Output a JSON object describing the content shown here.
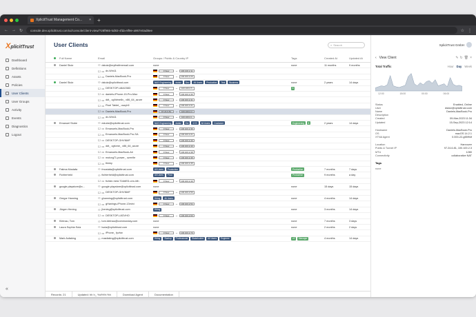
{
  "browser": {
    "tab_title": "XplicitTrust Management Co...",
    "url": "console.dev.xplicittrust.com/ui/console/client-view/?28f965-5d83-4fda-8f9e-a967e0ad8ee"
  },
  "sidebar": {
    "logo_x": "X",
    "logo_rest": "plicitTrust",
    "items": [
      {
        "label": "Dashboard"
      },
      {
        "label": "Definitions"
      },
      {
        "label": "Assets"
      },
      {
        "label": "Policies"
      },
      {
        "label": "User Clients"
      },
      {
        "label": "User Groups"
      },
      {
        "label": "Activity"
      },
      {
        "label": "Events"
      },
      {
        "label": "Diagnostics"
      },
      {
        "label": "Logout"
      }
    ],
    "collapse": "«"
  },
  "main": {
    "title": "User Clients",
    "search_placeholder": "Search",
    "columns": [
      "Full Name",
      "Email",
      "Groups / Public & Country IP",
      "Tags",
      "Created At",
      "Updated At"
    ],
    "rows": [
      {
        "type": "user",
        "status": "",
        "name": "Daniel Stolz",
        "email": "dstolz@myfirstfreemail.com",
        "groups": [],
        "groups_text": "none",
        "tags": "none",
        "created": "11 months",
        "updated": "9 months"
      },
      {
        "type": "device",
        "name": "dv-Win11",
        "ip1": "0 New",
        "ip2": "100.100.2.11"
      },
      {
        "type": "device",
        "name": "Daniels-MacBook-Pro",
        "ip1": "0 New",
        "ip2": "100.100.2.20"
      },
      {
        "type": "user",
        "status": "g",
        "name": "Daniel Stolz",
        "email": "dstolz@xplicittrust.com",
        "groups": [
          "NAS Engineering",
          "dstolz",
          "Dev",
          "All Users",
          "Production",
          "Test",
          "Business"
        ],
        "groups_text": "",
        "tags": "none",
        "created": "2 years",
        "updated": "14 days"
      },
      {
        "type": "device",
        "name": "DESKTOP-U8AO383",
        "ip1": "0 New",
        "ip2": "100.100.2.5",
        "tag": "A"
      },
      {
        "type": "device",
        "name": "daniels-iPhone-15-Pro-Max",
        "ip1": "0 New",
        "ip2": "100.100.2.35"
      },
      {
        "type": "device",
        "name": "ddt_ cg9dme8v_ x86_64_azure",
        "ip1": "0 New",
        "ip2": "100.100.2.41"
      },
      {
        "type": "device",
        "name": "Pixel Tablet_ oszyh9",
        "ip1": "0 New",
        "ip2": "100.100.2.21"
      },
      {
        "type": "device",
        "name": "Daniels-MacBook-Pro",
        "ip1": "97.24.6.81",
        "ip2": "100.100.2.3",
        "sel": true
      },
      {
        "type": "device",
        "name": "dv-Win11",
        "ip1": "0 New",
        "ip2": "100.100.2.1"
      },
      {
        "type": "user",
        "status": "",
        "name": "Emanuel Stube",
        "email": "estube@xplicittrust.com",
        "groups": [
          "NAS Engineering",
          "dstolz",
          "Ext",
          "X+S",
          "All Users",
          "Customer"
        ],
        "groups_text": "",
        "tags": "Engineering",
        "tags2": "8",
        "created": "2 years",
        "updated": "14 days"
      },
      {
        "type": "device",
        "name": "Emanuels-MacBook-Pro",
        "ip1": "0 New",
        "ip2": "100.100.2.36"
      },
      {
        "type": "device",
        "name": "Emanuels-MacBook-Pro-SA",
        "ip1": "0 New",
        "ip2": "100.100.2.21"
      },
      {
        "type": "device",
        "name": "DESKTOP-GHVNMF",
        "ip1": "0 New",
        "ip2": "100.100.2.40"
      },
      {
        "type": "device",
        "name": "ddt_ cgfome_ x86_64_azure",
        "ip1": "0 New",
        "ip2": "100.100.2.40"
      },
      {
        "type": "device",
        "name": "Emanuels-MacBook-Air",
        "ip1": "0 New",
        "ip2": "100.100.2.38"
      },
      {
        "type": "device",
        "name": "motorg71-power_ ozen9e",
        "ip1": "0 New",
        "ip2": "100.100.2.46"
      },
      {
        "type": "device",
        "name": "thinky",
        "ip1": "0 New",
        "ip2": "100.100.2.45"
      },
      {
        "type": "user",
        "status": "",
        "name": "Fatima Mostafa",
        "email": "fmostafa@xplicittrust.com",
        "groups": [
          "All Users",
          "Production"
        ],
        "groups_text": "",
        "tags": "Production",
        "created": "7 months",
        "updated": "7 days"
      },
      {
        "type": "user",
        "status": "",
        "name": "Fichterheld",
        "email": "fichterheld@xplicittrust.com",
        "groups": [
          "All Users",
          "Prod"
        ],
        "groups_text": "",
        "tags": "Production",
        "created": "9 months",
        "updated": "a day"
      },
      {
        "type": "device",
        "name": "fichter-held-T2&6ED-d-fc-Mh",
        "ip1": "0 New",
        "ip2": "100.100.2.49"
      },
      {
        "type": "user",
        "status": "",
        "name": "google.playstore@x...",
        "email": "google.playstore@xplicittrust.com",
        "groups": [],
        "groups_text": "none",
        "tags": "none",
        "created": "15 days",
        "updated": "15 days"
      },
      {
        "type": "device",
        "name": "DESKTOP-GHVNMF",
        "ip1": "0 New",
        "ip2": "100.100.2.50"
      },
      {
        "type": "user",
        "status": "",
        "name": "Gregor Hanning",
        "email": "ghanning@xplicittrust.com",
        "groups": [
          "Hiring",
          "All Users"
        ],
        "groups_text": "",
        "tags": "none",
        "created": "4 months",
        "updated": "14 days"
      },
      {
        "type": "device",
        "name": "gHanings-iPhone-13mini",
        "ip1": "0 New",
        "ip2": "100.100.2.54"
      },
      {
        "type": "user",
        "status": "",
        "name": "Jürgen Hening",
        "email": "jhening@xplicittrust.com",
        "groups": [
          "Hiring"
        ],
        "groups_text": "",
        "tags": "none",
        "created": "3 months",
        "updated": "14 days"
      },
      {
        "type": "device",
        "name": "DESKTOP-L8GVHO",
        "ip1": "0 New",
        "ip2": "100.100.2.60"
      },
      {
        "type": "user",
        "status": "",
        "name": "Kleinau, Tom",
        "email": "tom.kleinau@commonday.com",
        "groups": [],
        "groups_text": "none",
        "tags": "none",
        "created": "7 months",
        "updated": "3 days"
      },
      {
        "type": "user",
        "status": "",
        "name": "Laura Sophia Sola",
        "email": "lsola@xplicittrust.com",
        "groups": [],
        "groups_text": "none",
        "tags": "none",
        "created": "2 months",
        "updated": "2 days"
      },
      {
        "type": "device",
        "name": "iPhone_ fyzhw",
        "ip1": "0 New",
        "ip2": "100.100.2.70"
      },
      {
        "type": "user",
        "status": "",
        "name": "Mark Asfaking",
        "email": "masfaking@xplicittrust.com",
        "groups": [
          "Hiring",
          "Startup",
          "Professional",
          "Stakeholder",
          "All Users",
          "Engineer"
        ],
        "groups_text": "",
        "tags": "v2",
        "tags2": "Manager",
        "created": "4 months",
        "updated": "14 days"
      }
    ],
    "footer": {
      "records": "Records: 21",
      "updated": "Updated: hh h_ %d%%:%h",
      "download": "Download Agent",
      "docs": "Documentation"
    }
  },
  "panel": {
    "user_name": "XplicitTrust GmbH",
    "title": "View Client",
    "traffic_label": "Total Traffic",
    "ranges": [
      "Hour",
      "Day",
      "Week"
    ],
    "active_range": "Day",
    "chart_data": {
      "type": "area",
      "values": [
        6,
        8,
        10,
        9,
        12,
        30,
        10,
        8,
        7,
        9,
        11,
        28,
        34,
        14,
        10,
        16,
        12,
        18,
        20,
        15,
        22,
        10,
        12,
        14,
        8,
        26,
        13,
        10,
        11,
        9
      ],
      "ylim": [
        0,
        40
      ]
    },
    "axis_labels": [
      "12:00",
      "18:00",
      "00:00",
      "06:00"
    ],
    "details1": [
      {
        "k": "Status",
        "v": "Enabled, Online"
      },
      {
        "k": "User",
        "v": "dstolz@xplicittrust.com"
      },
      {
        "k": "Name",
        "v": "Daniels-MacBook-Pro"
      },
      {
        "k": "Description",
        "v": ""
      },
      {
        "k": "Created",
        "v": "09-Mar-2023 11:34"
      },
      {
        "k": "Updated",
        "v": "15-Sep-2023 12:14"
      }
    ],
    "details2": [
      {
        "k": "Hostname",
        "v": "Daniels-MacBook-Pro"
      },
      {
        "k": "OS",
        "v": "macOS 14.2.1"
      },
      {
        "k": "XTNA Agent",
        "v": "0.000-22-g55f94f"
      }
    ],
    "details3": [
      {
        "k": "Location",
        "v": "Hannover"
      },
      {
        "k": "Public & Tunnel IP",
        "v": "97.24.6.81, 100.100.2.3"
      },
      {
        "k": "MTU",
        "v": "1280"
      },
      {
        "k": "Connectivity",
        "v": "collaborative NAT"
      }
    ],
    "tags_header": "Tags",
    "tags_value": "none"
  }
}
